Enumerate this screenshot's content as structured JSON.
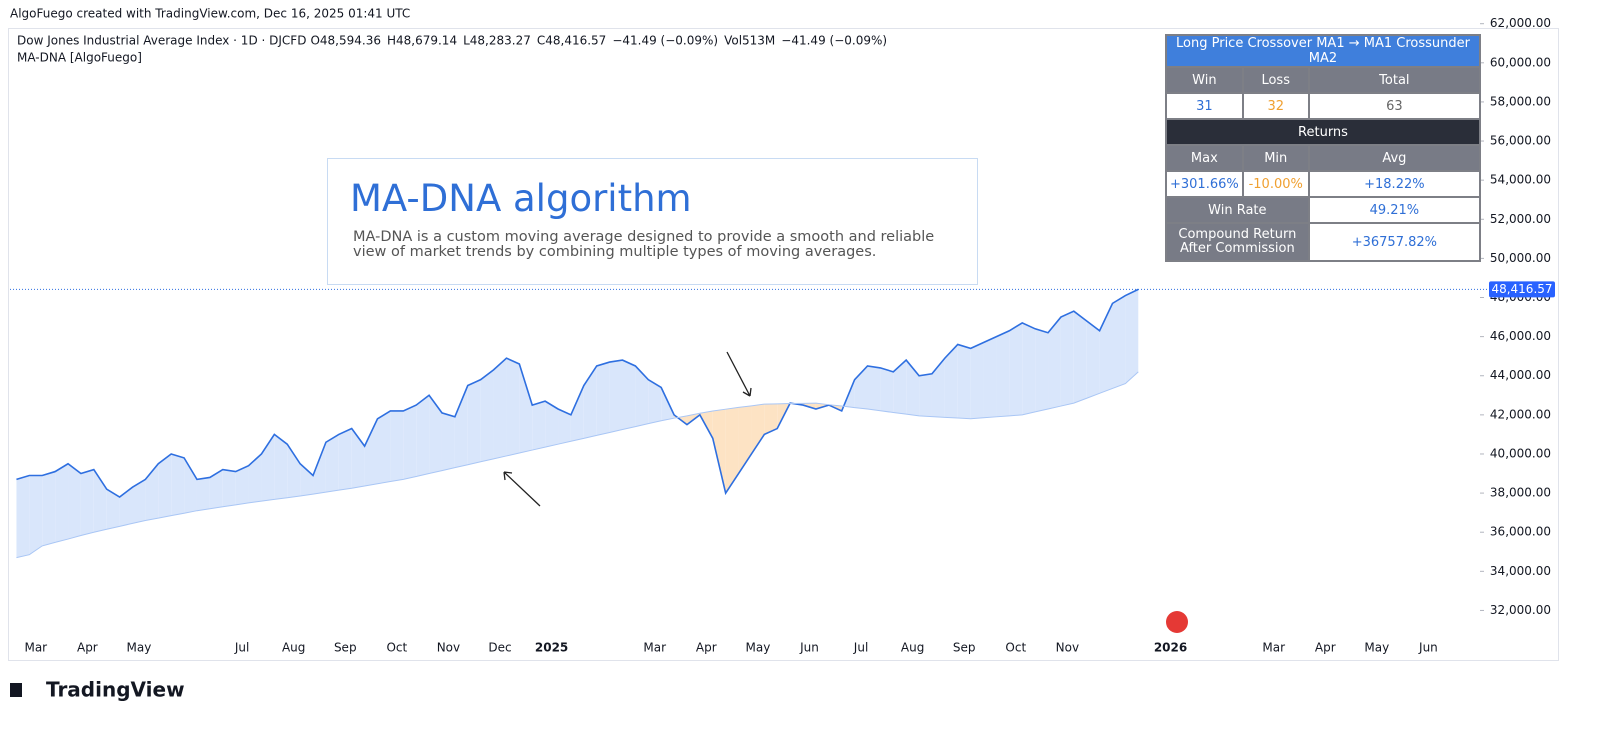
{
  "header": {
    "attribution": "AlgoFuego created with TradingView.com, Dec 16, 2025 01:41 UTC",
    "brand": "TradingView"
  },
  "legend": {
    "ohlc": [
      {
        "text": "O",
        "color": "#131722"
      },
      {
        "text": "48,594.36",
        "color": "#2962ff"
      },
      {
        "text": "H",
        "color": "#131722"
      },
      {
        "text": "48,679.14",
        "color": "#2962ff"
      },
      {
        "text": "L",
        "color": "#131722"
      },
      {
        "text": "48,283.27",
        "color": "#2962ff"
      },
      {
        "text": "C",
        "color": "#131722"
      },
      {
        "text": "48,416.57",
        "color": "#2962ff"
      },
      {
        "text": "−41.49 (−0.09%)",
        "color": "#2962ff"
      },
      {
        "text": "Vol",
        "color": "#131722"
      },
      {
        "text": "513M",
        "color": "#2962ff"
      },
      {
        "text": "−41.49 (−0.09%)",
        "color": "#f23645"
      }
    ]
  },
  "info_box": {
    "title": "MA-DNA algorithm",
    "text": "MA-DNA is a custom moving average designed to provide a smooth and reliable view of market trends by combining multiple types of moving averages."
  },
  "stats_table": {
    "title": "Long Price Crossover MA1 → MA1 Crossunder MA2",
    "rows": [
      [
        "Win",
        "Loss",
        "Total"
      ],
      [
        "31",
        "32",
        "63"
      ],
      [
        "Returns"
      ],
      [
        "Max",
        "Min",
        "Avg"
      ],
      [
        "+301.66%",
        "-10.00%",
        "+18.22%"
      ],
      [
        "Win Rate",
        "49.21%"
      ],
      [
        "Compound Return After Commission",
        "+36757.82%"
      ]
    ]
  },
  "chart_data": {
    "type": "line",
    "categories": [
      null,
      null,
      "Mar",
      null,
      null,
      null,
      "Apr",
      null,
      null,
      null,
      "May",
      null,
      null,
      null,
      null,
      null,
      null,
      null,
      "Jul",
      null,
      null,
      null,
      "Aug",
      null,
      null,
      null,
      "Sep",
      null,
      null,
      null,
      "Oct",
      null,
      null,
      null,
      "Nov",
      null,
      null,
      null,
      "Dec",
      null,
      null,
      null,
      "2025",
      null,
      null,
      null,
      null,
      null,
      null,
      null,
      "Mar",
      null,
      null,
      null,
      "Apr",
      null,
      null,
      null,
      "May",
      null,
      null,
      null,
      "Jun",
      null,
      null,
      null,
      "Jul",
      null,
      null,
      null,
      "Aug",
      null,
      null,
      null,
      "Sep",
      null,
      null,
      null,
      "Oct",
      null,
      null,
      null,
      "Nov",
      null,
      null,
      null,
      null,
      null,
      null,
      null,
      "2026",
      null,
      null,
      null,
      null,
      null,
      null,
      null,
      "Mar",
      null,
      null,
      null,
      "Apr",
      null,
      null,
      null,
      "May",
      null,
      null,
      null,
      "Jun",
      null,
      null,
      null
    ],
    "series": [
      {
        "name": "Dow Jones Industrial Average Index · 1D · DJCFD",
        "color": "#2e6fe0",
        "values": [
          38700,
          38900,
          38900,
          39100,
          39500,
          39000,
          39200,
          38200,
          37800,
          38300,
          38700,
          39500,
          40000,
          39800,
          38700,
          38800,
          39200,
          39100,
          39400,
          40000,
          41000,
          40500,
          39500,
          38900,
          40600,
          41000,
          41300,
          40400,
          41800,
          42200,
          42200,
          42500,
          43000,
          42100,
          41900,
          43500,
          43800,
          44300,
          44900,
          44600,
          42500,
          42700,
          42300,
          42000,
          43500,
          44500,
          44700,
          44800,
          44500,
          43800,
          43400,
          42000,
          41500,
          42000,
          40800,
          38000,
          39000,
          40000,
          41000,
          41300,
          42600,
          42500,
          42300,
          42500,
          42200,
          43800,
          44500,
          44400,
          44200,
          44800,
          44000,
          44100,
          44900,
          45600,
          45400,
          45700,
          46000,
          46300,
          46700,
          46400,
          46200,
          47000,
          47300,
          46800,
          46300,
          47700,
          48100,
          48416.57,
          null,
          null,
          null,
          null,
          null,
          null,
          null,
          null,
          null,
          null,
          null,
          null,
          null,
          null,
          null,
          null,
          null,
          null,
          null,
          null,
          null,
          null,
          null,
          null,
          null,
          null
        ]
      },
      {
        "name": "MA-DNA [AlgoFuego]",
        "color": "#a9c6f5",
        "values": [
          34700,
          34850,
          35300,
          35480,
          35650,
          35830,
          36000,
          36150,
          36300,
          36450,
          36600,
          36720,
          36850,
          36970,
          37100,
          37200,
          37300,
          37400,
          37500,
          37590,
          37680,
          37760,
          37850,
          37950,
          38050,
          38150,
          38250,
          38360,
          38480,
          38590,
          38700,
          38850,
          39000,
          39150,
          39300,
          39450,
          39600,
          39750,
          39900,
          40050,
          40200,
          40350,
          40500,
          40650,
          40800,
          40950,
          41100,
          41250,
          41400,
          41550,
          41700,
          41830,
          41950,
          42080,
          42200,
          42290,
          42380,
          42460,
          42550,
          42560,
          42580,
          42590,
          42600,
          42520,
          42450,
          42370,
          42300,
          42210,
          42120,
          42040,
          41950,
          41910,
          41870,
          41840,
          41800,
          41850,
          41900,
          41950,
          42000,
          42150,
          42300,
          42450,
          42600,
          42850,
          43100,
          43350,
          43600,
          44200,
          null,
          null,
          null,
          null,
          null,
          null,
          null,
          null,
          null,
          null,
          null,
          null,
          null,
          null,
          null,
          null,
          null,
          null,
          null,
          null,
          null,
          null,
          null,
          null,
          null,
          null
        ]
      }
    ],
    "fill_above": "#d9e6fb",
    "fill_below": "#fde3c4",
    "ylim": [
      31000,
      62700
    ],
    "yticks": [
      {
        "value": 32000,
        "label": "32,000.00"
      },
      {
        "value": 34000,
        "label": "34,000.00"
      },
      {
        "value": 36000,
        "label": "36,000.00"
      },
      {
        "value": 38000,
        "label": "38,000.00"
      },
      {
        "value": 40000,
        "label": "40,000.00"
      },
      {
        "value": 42000,
        "label": "42,000.00"
      },
      {
        "value": 44000,
        "label": "44,000.00"
      },
      {
        "value": 46000,
        "label": "46,000.00"
      },
      {
        "value": 48000,
        "label": "48,000.00"
      },
      {
        "value": 50000,
        "label": "50,000.00"
      },
      {
        "value": 52000,
        "label": "52,000.00"
      },
      {
        "value": 54000,
        "label": "54,000.00"
      },
      {
        "value": 56000,
        "label": "56,000.00"
      },
      {
        "value": 58000,
        "label": "58,000.00"
      },
      {
        "value": 60000,
        "label": "60,000.00"
      },
      {
        "value": 62000,
        "label": "62,000.00"
      }
    ],
    "last_price": {
      "value": 48416.57,
      "label": "48,416.57"
    }
  }
}
